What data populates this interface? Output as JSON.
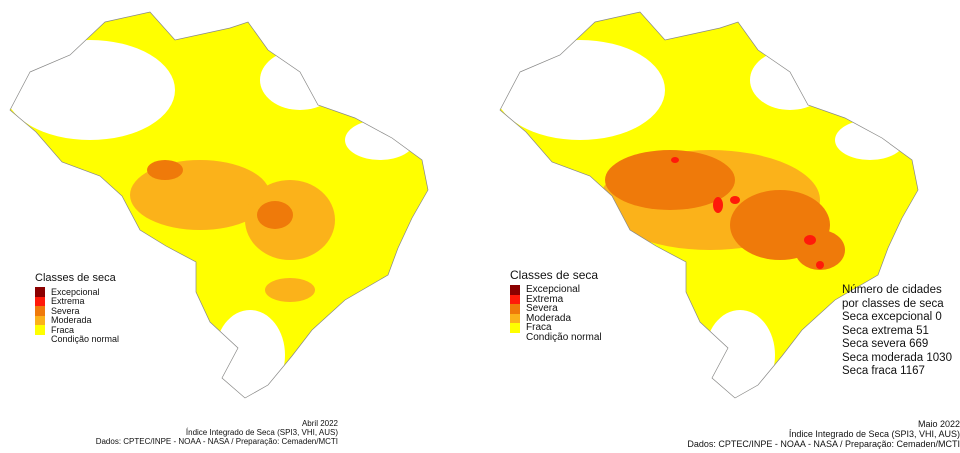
{
  "legend": {
    "title": "Classes de seca",
    "items": [
      {
        "label": "Excepcional",
        "color": "#8b0000"
      },
      {
        "label": "Extrema",
        "color": "#ff1a0a"
      },
      {
        "label": "Severa",
        "color": "#ef7a0a"
      },
      {
        "label": "Moderada",
        "color": "#fbb21a"
      },
      {
        "label": "Fraca",
        "color": "#ffff00"
      },
      {
        "label": "Condição normal",
        "color": "#ffffff"
      }
    ]
  },
  "left": {
    "caption": [
      "Abril 2022",
      "Índice Integrado de Seca (SPI3, VHI, AUS)",
      "Dados: CPTEC/INPE - NOAA - NASA / Preparação: Cemaden/MCTI"
    ]
  },
  "right": {
    "caption": [
      "Maio 2022",
      "Índice Integrado de Seca (SPI3, VHI, AUS)",
      "Dados: CPTEC/INPE - NOAA - NASA / Preparação: Cemaden/MCTI"
    ],
    "stats": [
      "Número de cidades",
      "por classes de seca",
      "Seca excepcional 0",
      "Seca extrema  51",
      "Seca severa  669",
      "Seca moderada 1030",
      "Seca fraca  1167"
    ]
  }
}
